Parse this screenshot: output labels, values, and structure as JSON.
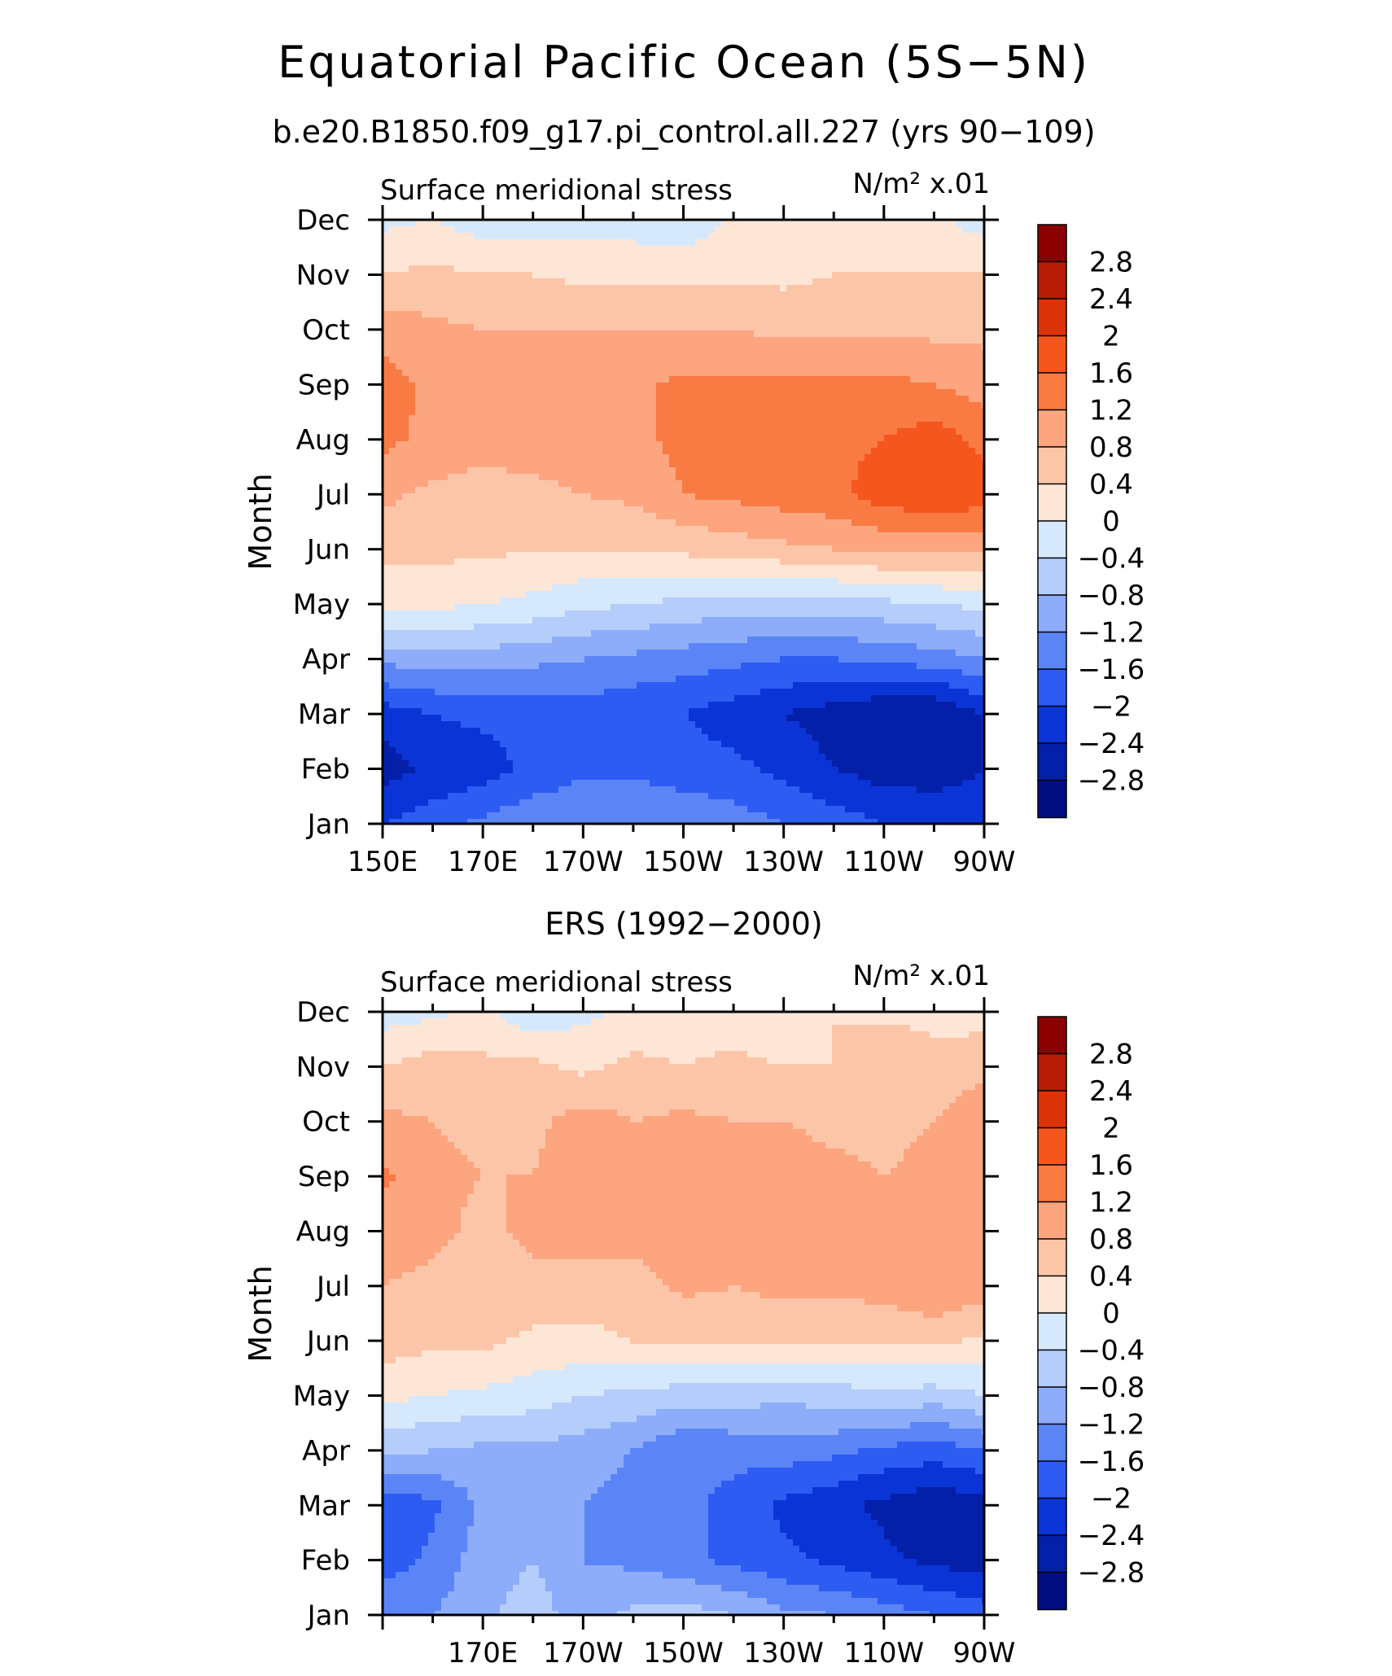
{
  "figure": {
    "title": "Equatorial Pacific Ocean (5S−5N)",
    "subtitle": "b.e20.B1850.f09_g17.pi_control.all.227 (yrs 90−109)"
  },
  "colorbar": {
    "levels": [
      "2.8",
      "2.4",
      "2",
      "1.6",
      "1.2",
      "0.8",
      "0.4",
      "0",
      "−0.4",
      "−0.8",
      "−1.2",
      "−1.6",
      "−2",
      "−2.4",
      "−2.8"
    ],
    "colors": [
      "#8b0000",
      "#b81b04",
      "#db3408",
      "#f5561d",
      "#fa7a44",
      "#fca57f",
      "#fdc5a8",
      "#fee6d6",
      "#d6e8fc",
      "#b4cdfb",
      "#8dacf9",
      "#5b85f7",
      "#2d5cf3",
      "#0b34d6",
      "#0420a9",
      "#000e82"
    ]
  },
  "chart_data": [
    {
      "type": "heatmap",
      "title": "",
      "left_string": "Surface meridional stress",
      "right_string": "N/m² x.01",
      "ylabel": "Month",
      "y_ticks": [
        "Jan",
        "Feb",
        "Mar",
        "Apr",
        "May",
        "Jun",
        "Jul",
        "Aug",
        "Sep",
        "Oct",
        "Nov",
        "Dec"
      ],
      "x_ticks": [
        "150E",
        "170E",
        "170W",
        "150W",
        "130W",
        "110W",
        "90W"
      ],
      "xlim": [
        "150E",
        "90W"
      ],
      "x": [
        "150E",
        "160E",
        "170E",
        "180",
        "170W",
        "160W",
        "150W",
        "140W",
        "130W",
        "120W",
        "110W",
        "100W",
        "90W"
      ],
      "y": [
        "Jan",
        "Feb",
        "Mar",
        "Apr",
        "May",
        "Jun",
        "Jul",
        "Aug",
        "Sep",
        "Oct",
        "Nov",
        "Dec"
      ],
      "values": [
        [
          -2.0,
          -1.8,
          -1.5,
          -1.3,
          -1.2,
          -1.2,
          -1.3,
          -1.4,
          -1.6,
          -1.8,
          -2.0,
          -2.1,
          -2.2
        ],
        [
          -2.6,
          -2.3,
          -2.2,
          -1.9,
          -1.7,
          -1.7,
          -1.8,
          -1.9,
          -2.1,
          -2.4,
          -2.6,
          -2.6,
          -2.4
        ],
        [
          -2.2,
          -2.0,
          -1.9,
          -1.8,
          -1.8,
          -1.9,
          -2.0,
          -2.2,
          -2.4,
          -2.6,
          -2.8,
          -2.8,
          -2.4
        ],
        [
          -1.1,
          -1.0,
          -1.0,
          -1.1,
          -1.2,
          -1.3,
          -1.4,
          -1.5,
          -1.6,
          -1.6,
          -1.5,
          -1.4,
          -1.2
        ],
        [
          0.2,
          0.1,
          0.0,
          -0.1,
          -0.3,
          -0.4,
          -0.5,
          -0.6,
          -0.6,
          -0.6,
          -0.5,
          -0.4,
          -0.3
        ],
        [
          0.5,
          0.5,
          0.5,
          0.4,
          0.4,
          0.4,
          0.5,
          0.6,
          0.7,
          0.8,
          0.9,
          0.9,
          0.9
        ],
        [
          0.9,
          0.7,
          0.6,
          0.7,
          0.8,
          0.9,
          1.2,
          1.3,
          1.4,
          1.5,
          1.8,
          2.0,
          1.8
        ],
        [
          1.3,
          1.1,
          1.0,
          1.0,
          1.0,
          1.1,
          1.3,
          1.4,
          1.4,
          1.5,
          1.6,
          1.8,
          1.5
        ],
        [
          1.4,
          1.1,
          1.0,
          1.0,
          1.0,
          1.1,
          1.3,
          1.3,
          1.3,
          1.3,
          1.3,
          1.2,
          1.0
        ],
        [
          1.0,
          0.9,
          0.8,
          0.8,
          0.8,
          0.8,
          0.8,
          0.8,
          0.7,
          0.7,
          0.7,
          0.7,
          0.7
        ],
        [
          0.4,
          0.5,
          0.4,
          0.4,
          0.3,
          0.3,
          0.3,
          0.3,
          0.3,
          0.4,
          0.4,
          0.4,
          0.4
        ],
        [
          -0.1,
          0.0,
          -0.2,
          -0.2,
          -0.2,
          -0.2,
          -0.3,
          0.1,
          0.1,
          0.1,
          0.0,
          0.1,
          -0.2
        ]
      ]
    },
    {
      "type": "heatmap",
      "title": "ERS (1992−2000)",
      "left_string": "Surface meridional stress",
      "right_string": "N/m² x.01",
      "ylabel": "Month",
      "y_ticks": [
        "Jan",
        "Feb",
        "Mar",
        "Apr",
        "May",
        "Jun",
        "Jul",
        "Aug",
        "Sep",
        "Oct",
        "Nov",
        "Dec"
      ],
      "x_ticks": [
        "170E",
        "170W",
        "150W",
        "130W",
        "110W",
        "90W"
      ],
      "xlim": [
        "150E",
        "90W"
      ],
      "x": [
        "150E",
        "160E",
        "170E",
        "180",
        "170W",
        "160W",
        "150W",
        "140W",
        "130W",
        "120W",
        "110W",
        "100W",
        "90W"
      ],
      "y": [
        "Jan",
        "Feb",
        "Mar",
        "Apr",
        "May",
        "Jun",
        "Jul",
        "Aug",
        "Sep",
        "Oct",
        "Nov",
        "Dec"
      ],
      "values": [
        [
          -1.3,
          -1.2,
          -0.9,
          -0.6,
          -1.0,
          -0.7,
          -0.6,
          -0.8,
          -1.1,
          -1.2,
          -1.4,
          -1.6,
          -1.8
        ],
        [
          -1.8,
          -1.5,
          -1.0,
          -0.8,
          -1.2,
          -1.3,
          -1.5,
          -1.7,
          -1.9,
          -2.1,
          -2.3,
          -2.5,
          -2.6
        ],
        [
          -1.9,
          -1.7,
          -1.1,
          -0.8,
          -1.2,
          -1.4,
          -1.5,
          -1.7,
          -2.1,
          -2.3,
          -2.5,
          -2.7,
          -2.6
        ],
        [
          -0.7,
          -0.8,
          -0.9,
          -0.9,
          -1.0,
          -1.2,
          -1.6,
          -1.5,
          -1.4,
          -1.5,
          -1.7,
          -1.8,
          -1.6
        ],
        [
          0.1,
          0.0,
          -0.1,
          -0.2,
          -0.4,
          -0.5,
          -0.6,
          -0.6,
          -0.7,
          -0.6,
          -0.5,
          -0.6,
          -0.4
        ],
        [
          0.6,
          0.5,
          0.5,
          0.3,
          0.3,
          0.4,
          0.4,
          0.5,
          0.5,
          0.4,
          0.4,
          0.5,
          0.3
        ],
        [
          0.8,
          0.7,
          0.6,
          0.7,
          0.6,
          0.6,
          0.9,
          0.8,
          0.9,
          0.9,
          1.0,
          1.2,
          1.0
        ],
        [
          1.0,
          0.9,
          0.7,
          0.9,
          1.0,
          1.0,
          1.0,
          1.0,
          1.0,
          1.0,
          0.9,
          1.2,
          1.1
        ],
        [
          1.3,
          0.9,
          0.8,
          0.8,
          1.0,
          0.9,
          1.0,
          1.0,
          1.0,
          0.9,
          0.8,
          0.9,
          1.2
        ],
        [
          0.9,
          0.8,
          0.7,
          0.7,
          1.0,
          0.8,
          0.9,
          0.8,
          0.8,
          0.7,
          0.7,
          0.8,
          1.1
        ],
        [
          0.4,
          0.6,
          0.5,
          0.5,
          0.3,
          0.5,
          0.4,
          0.5,
          0.4,
          0.4,
          0.8,
          0.5,
          0.7
        ],
        [
          -0.2,
          -0.1,
          0.1,
          -0.3,
          -0.1,
          0.1,
          0.2,
          0.2,
          0.1,
          0.4,
          0.3,
          0.3,
          0.2
        ]
      ]
    }
  ]
}
